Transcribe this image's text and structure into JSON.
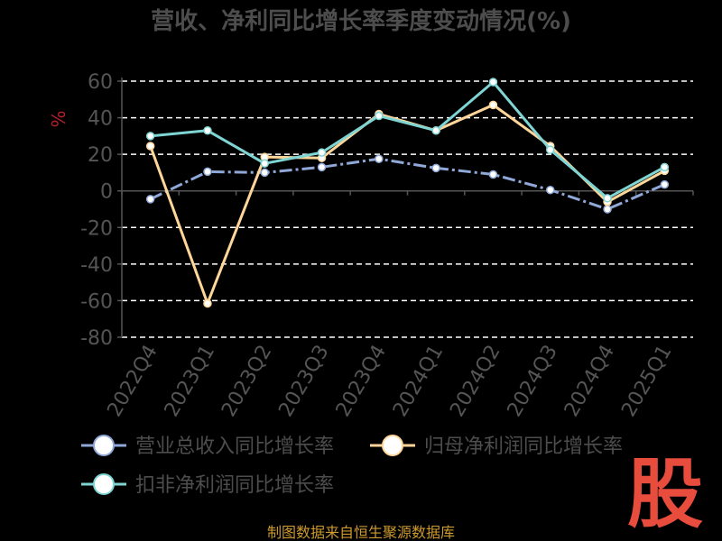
{
  "chart_data": {
    "type": "line",
    "title": "营收、净利同比增长率季度变动情况(%)",
    "ylabel": "%",
    "xlabel": "",
    "categories": [
      "2022Q4",
      "2023Q1",
      "2023Q2",
      "2023Q3",
      "2023Q4",
      "2024Q1",
      "2024Q2",
      "2024Q3",
      "2024Q4",
      "2025Q1"
    ],
    "ylim": [
      -80,
      60
    ],
    "yticks": [
      60,
      40,
      20,
      0,
      -20,
      -40,
      -60,
      -80
    ],
    "grid": true,
    "legend_position": "bottom",
    "series": [
      {
        "name": "营业总收入同比增长率",
        "color": "#8fa8d8",
        "dash": true,
        "values": [
          -4.5,
          10.5,
          10,
          13,
          17.5,
          12.5,
          9,
          0.5,
          -10,
          3.5
        ]
      },
      {
        "name": "归母净利润同比增长率",
        "color": "#ffd699",
        "dash": false,
        "values": [
          24.5,
          -61.5,
          18.5,
          18,
          42,
          33,
          47,
          24.5,
          -6,
          11
        ]
      },
      {
        "name": "扣非净利润同比增长率",
        "color": "#7fd4d4",
        "dash": false,
        "values": [
          30,
          33,
          15,
          21,
          41,
          33,
          59.5,
          22.5,
          -4,
          13
        ]
      }
    ]
  },
  "source": "制图数据来自恒生聚源数据库",
  "logo": "股",
  "colors": {
    "background": "#000000",
    "axis": "#555555",
    "grid": "#ffffff",
    "tick": "#555555",
    "title": "#4d4d4d",
    "legend_text": "#4d4d4d",
    "ylabel": "#b3202a",
    "source": "#cc9a2e",
    "logo": "#e84c3d"
  }
}
